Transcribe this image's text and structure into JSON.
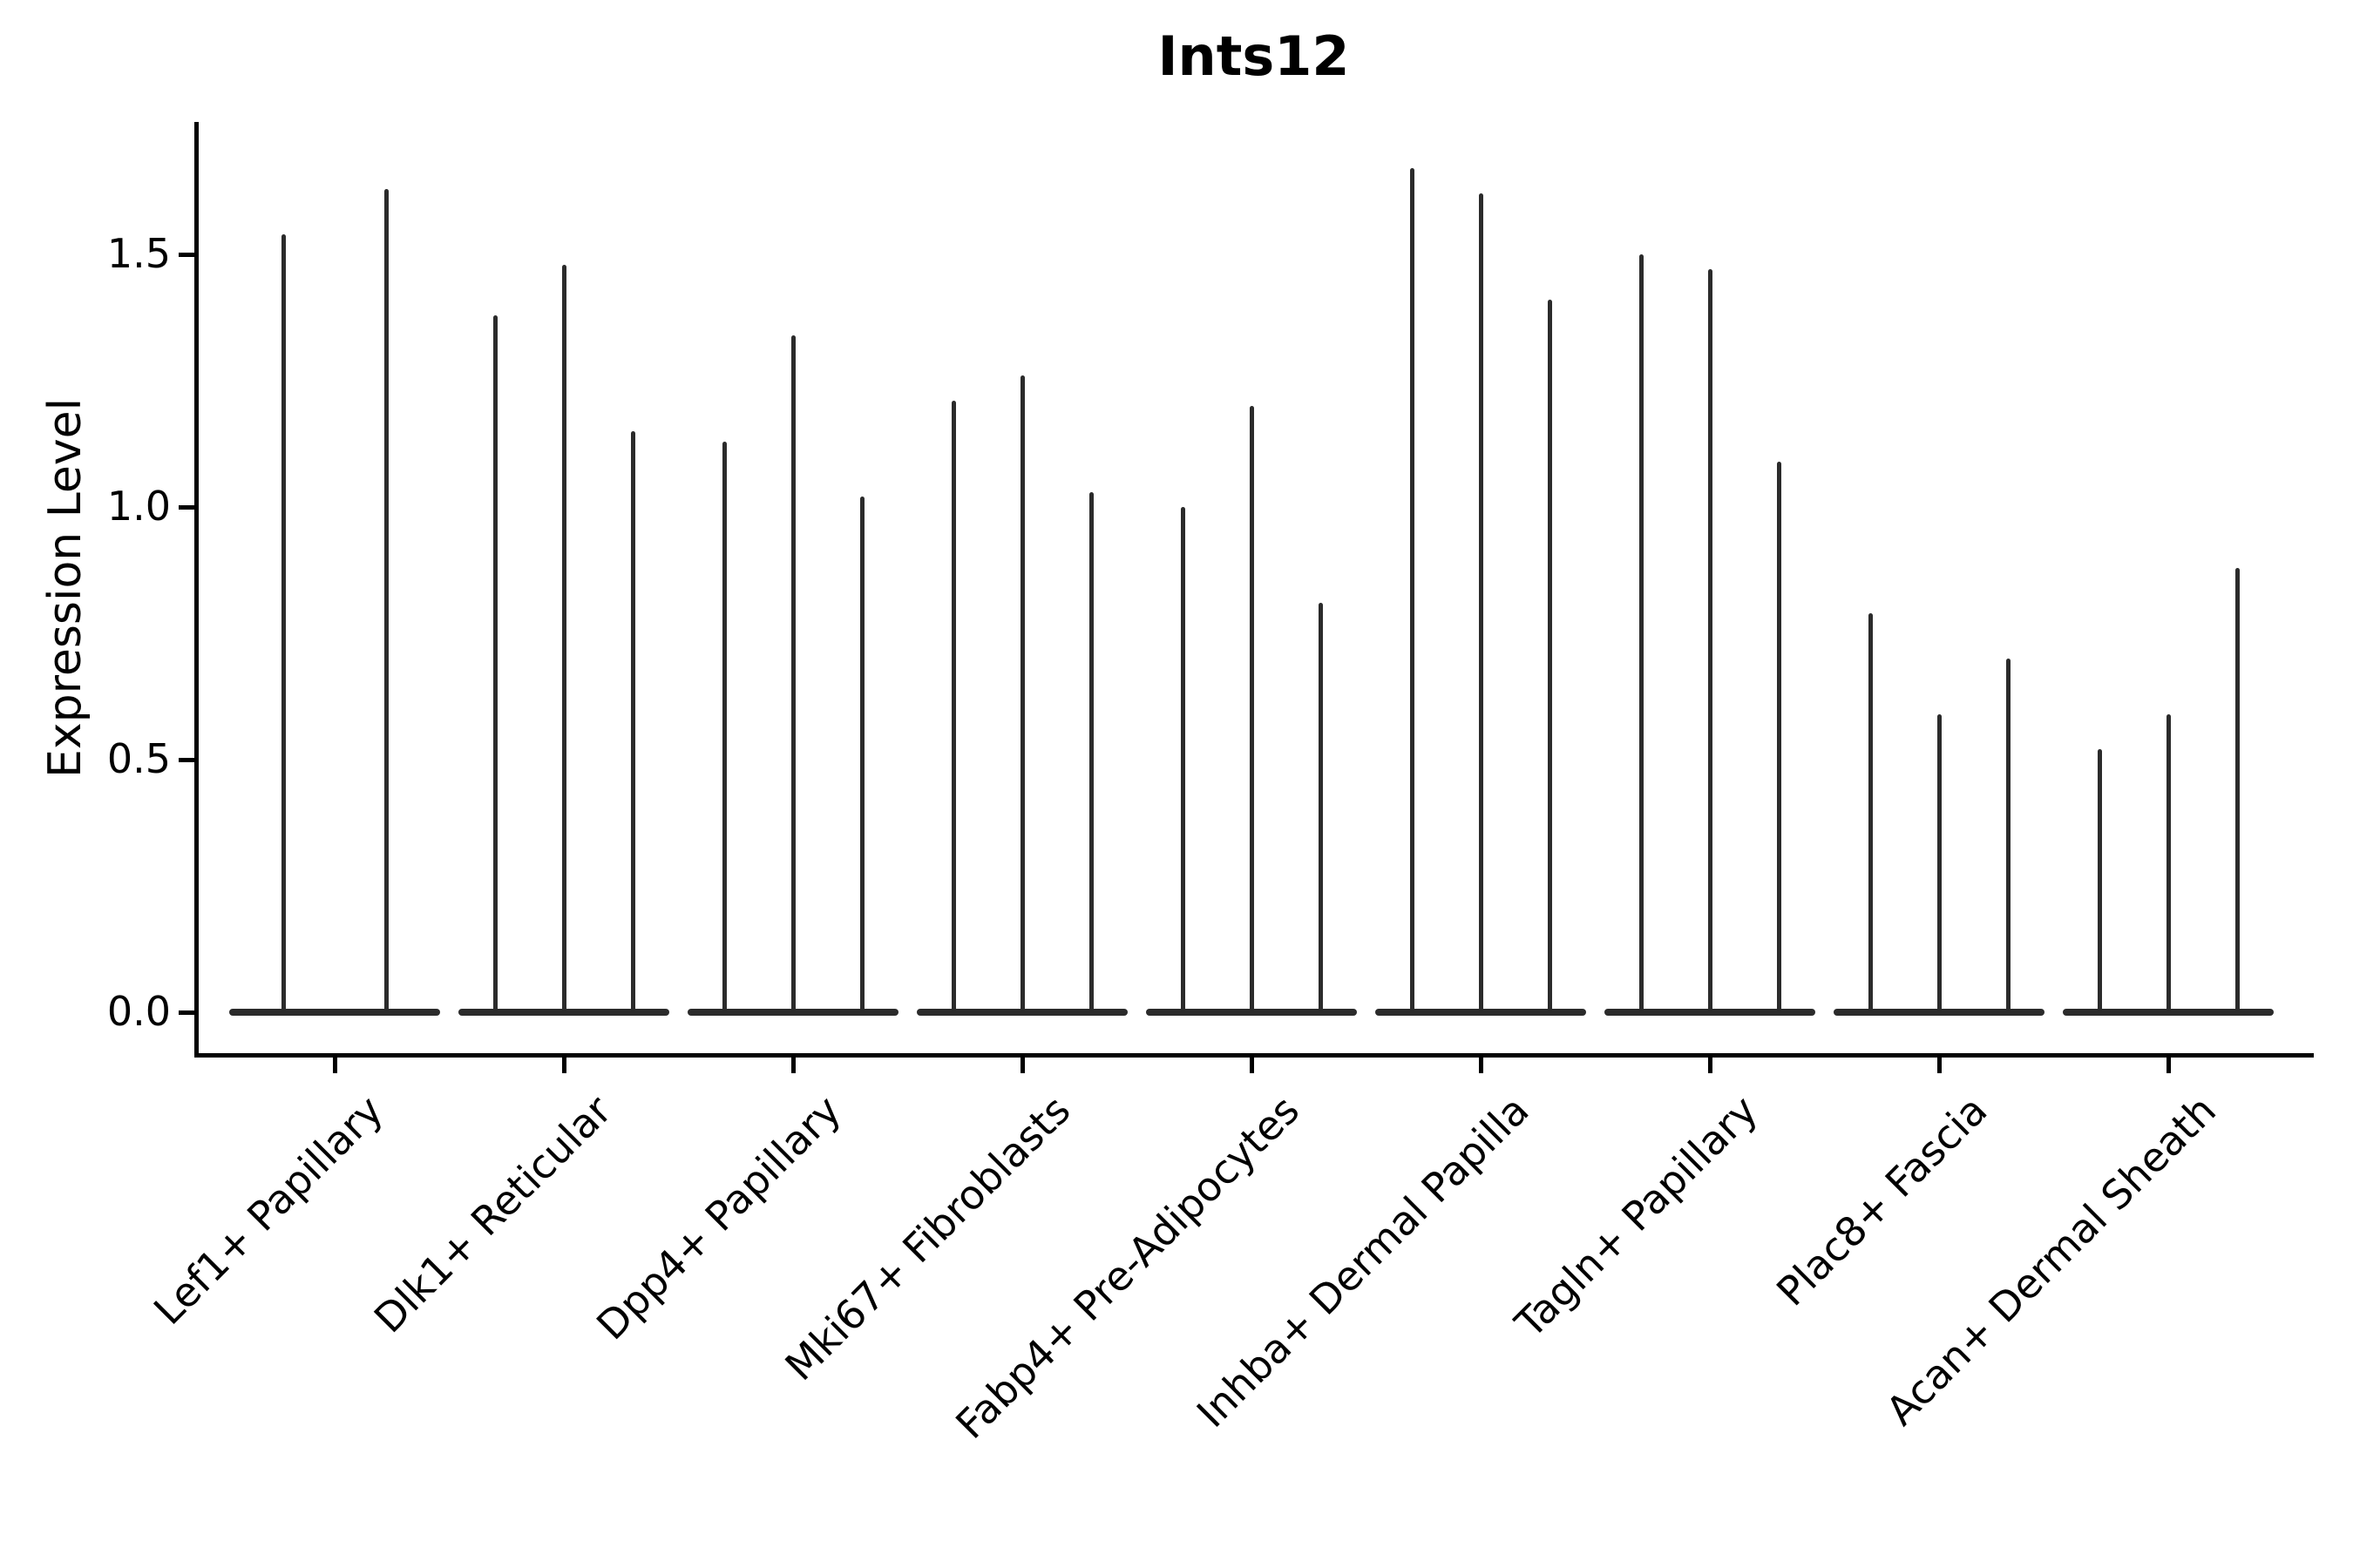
{
  "figure": {
    "title": "Ints12",
    "background_color": "#ffffff",
    "ink_color": "#000000",
    "violin_color": "#2b2b2b"
  },
  "axes": {
    "ylabel": "Expression Level",
    "ytick_labels": [
      "0.0",
      "0.5",
      "1.0",
      "1.5"
    ]
  },
  "chart_data": {
    "type": "violin",
    "title": "Ints12",
    "xlabel": "",
    "ylabel": "Expression Level",
    "ylim": [
      0,
      1.76
    ],
    "yticks": [
      0.0,
      0.5,
      1.0,
      1.5
    ],
    "ytick_labels": [
      "0.0",
      "0.5",
      "1.0",
      "1.5"
    ],
    "grid": false,
    "legend": "none",
    "xtick_rotation_degrees": 45,
    "categories": [
      "Lef1+ Papillary",
      "Dlk1+ Reticular",
      "Dpp4+ Papillary",
      "Mki67+ Fibroblasts",
      "Fabp4+ Pre-Adipocytes",
      "Inhba+ Dermal Papilla",
      "Tagln+ Papillary",
      "Plac8+ Fascia",
      "Acan+ Dermal Sheath"
    ],
    "violins_per_category": [
      2,
      3,
      3,
      3,
      3,
      3,
      3,
      3,
      3
    ],
    "series_description": "Each category shows narrow violins: a wide flat lobe at expression 0 and a thin spike reaching the maximum expression value listed below.",
    "max_expression_per_violin": [
      [
        1.54,
        1.63
      ],
      [
        1.38,
        1.48,
        1.15
      ],
      [
        1.13,
        1.34,
        1.02
      ],
      [
        1.21,
        1.26,
        1.03
      ],
      [
        1.0,
        1.2,
        0.81
      ],
      [
        1.67,
        1.62,
        1.41
      ],
      [
        1.5,
        1.47,
        1.09
      ],
      [
        0.79,
        0.59,
        0.7
      ],
      [
        0.52,
        0.59,
        0.88
      ]
    ],
    "baseline_value": 0.0
  }
}
